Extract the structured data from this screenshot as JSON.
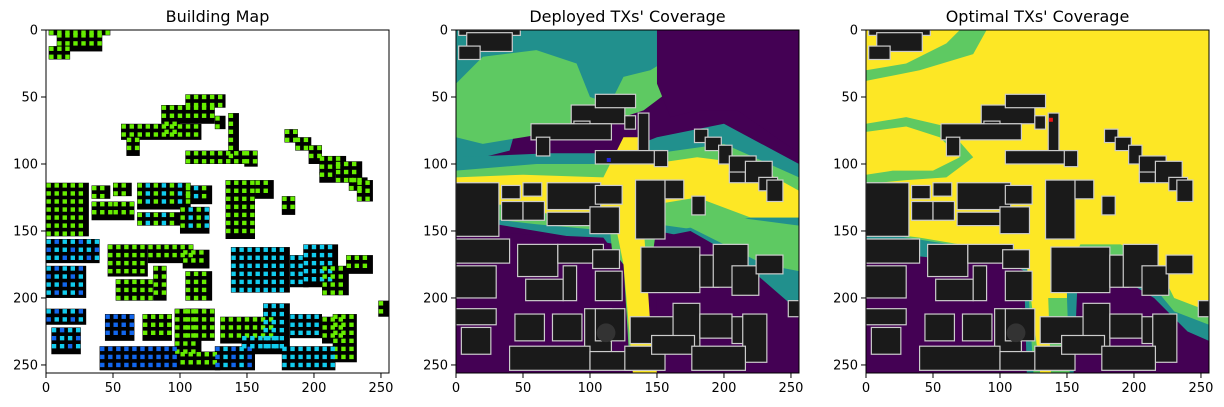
{
  "chart_data": [
    {
      "type": "heatmap",
      "title": "Building Map",
      "xlabel": "",
      "ylabel": "",
      "xlim": [
        0,
        256
      ],
      "ylim": [
        256,
        0
      ],
      "xticks": [
        0,
        50,
        100,
        150,
        200,
        250
      ],
      "yticks": [
        0,
        50,
        100,
        150,
        200,
        250
      ],
      "colors": {
        "background": "#ffffff",
        "building": "#000000",
        "markers": [
          "#66ee00",
          "#11ccee",
          "#1166ee"
        ]
      }
    },
    {
      "type": "heatmap",
      "title": "Deployed TXs' Coverage",
      "xlabel": "",
      "ylabel": "",
      "xlim": [
        0,
        256
      ],
      "ylim": [
        256,
        0
      ],
      "xticks": [
        0,
        50,
        100,
        150,
        200,
        250
      ],
      "yticks": [
        0,
        50,
        100,
        150,
        200,
        250
      ],
      "colors": {
        "low": "#440154",
        "mid": "#21908d",
        "high": "#5ec962",
        "max": "#fde725",
        "building": "#1a1a1a",
        "outline": "#cccccc",
        "tx": "#2222dd"
      }
    },
    {
      "type": "heatmap",
      "title": "Optimal TXs' Coverage",
      "xlabel": "",
      "ylabel": "",
      "xlim": [
        0,
        256
      ],
      "ylim": [
        256,
        0
      ],
      "xticks": [
        0,
        50,
        100,
        150,
        200,
        250
      ],
      "yticks": [
        0,
        50,
        100,
        150,
        200,
        250
      ],
      "colors": {
        "low": "#440154",
        "mid": "#21908d",
        "high": "#5ec962",
        "max": "#fde725",
        "building": "#1a1a1a",
        "outline": "#cccccc",
        "tx": "#ee1111"
      }
    }
  ]
}
